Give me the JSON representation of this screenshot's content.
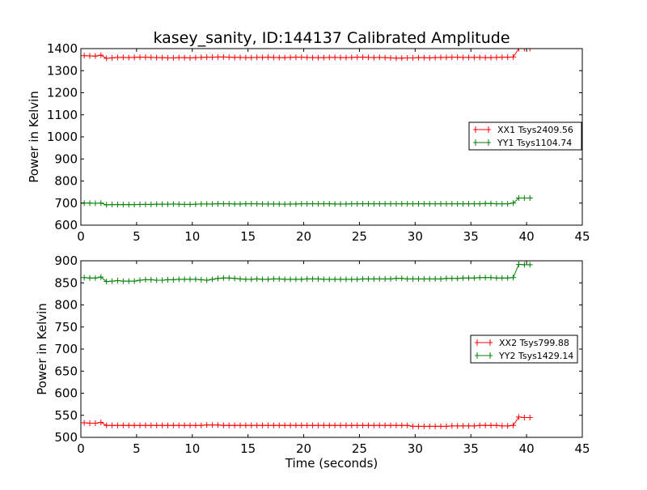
{
  "chart_data": [
    {
      "type": "line",
      "title": "kasey_sanity, ID:144137 Calibrated Amplitude",
      "xlabel": "",
      "ylabel": "Power in Kelvin",
      "xlim": [
        0,
        45
      ],
      "ylim": [
        600,
        1400
      ],
      "xticks": [
        0,
        5,
        10,
        15,
        20,
        25,
        30,
        35,
        40,
        45
      ],
      "yticks": [
        600,
        700,
        800,
        900,
        1000,
        1100,
        1200,
        1300,
        1400
      ],
      "legend_position": "center-right",
      "x_start": 0.3,
      "x_step": 0.5,
      "series": [
        {
          "name": "XX1 Tsys2409.56",
          "color": "#ff0000",
          "values": [
            1368,
            1367,
            1366,
            1370,
            1356,
            1358,
            1360,
            1360,
            1359,
            1360,
            1361,
            1361,
            1360,
            1359,
            1359,
            1358,
            1358,
            1359,
            1359,
            1358,
            1359,
            1360,
            1361,
            1361,
            1362,
            1362,
            1361,
            1360,
            1360,
            1359,
            1359,
            1360,
            1360,
            1361,
            1360,
            1359,
            1359,
            1360,
            1361,
            1361,
            1360,
            1359,
            1359,
            1359,
            1360,
            1360,
            1359,
            1359,
            1360,
            1361,
            1361,
            1360,
            1359,
            1360,
            1359,
            1358,
            1357,
            1357,
            1358,
            1358,
            1359,
            1359,
            1358,
            1359,
            1360,
            1360,
            1361,
            1361,
            1360,
            1360,
            1360,
            1360,
            1359,
            1359,
            1360,
            1361,
            1361,
            1362,
            1400,
            1400,
            1400
          ]
        },
        {
          "name": "YY1 Tsys1104.74",
          "color": "#008000",
          "values": [
            700,
            700,
            699,
            700,
            692,
            693,
            693,
            693,
            693,
            693,
            694,
            694,
            694,
            695,
            695,
            695,
            696,
            695,
            694,
            694,
            695,
            696,
            696,
            696,
            697,
            697,
            697,
            696,
            696,
            697,
            697,
            697,
            696,
            696,
            696,
            696,
            695,
            696,
            696,
            697,
            697,
            697,
            697,
            697,
            697,
            696,
            696,
            696,
            697,
            697,
            697,
            697,
            697,
            697,
            697,
            697,
            697,
            697,
            697,
            697,
            697,
            697,
            697,
            697,
            697,
            697,
            697,
            697,
            697,
            697,
            697,
            697,
            698,
            698,
            697,
            697,
            697,
            700,
            723,
            723,
            723
          ]
        }
      ]
    },
    {
      "type": "line",
      "title": "",
      "xlabel": "Time (seconds)",
      "ylabel": "Power in Kelvin",
      "xlim": [
        0,
        45
      ],
      "ylim": [
        500,
        900
      ],
      "xticks": [
        0,
        5,
        10,
        15,
        20,
        25,
        30,
        35,
        40,
        45
      ],
      "yticks": [
        500,
        550,
        600,
        650,
        700,
        750,
        800,
        850,
        900
      ],
      "legend_position": "center-right",
      "x_start": 0.3,
      "x_step": 0.5,
      "series": [
        {
          "name": "XX2 Tsys799.88",
          "color": "#ff0000",
          "values": [
            533,
            532,
            532,
            534,
            527,
            527,
            527,
            527,
            527,
            527,
            527,
            527,
            527,
            527,
            527,
            527,
            527,
            527,
            527,
            527,
            527,
            527,
            528,
            528,
            528,
            527,
            527,
            527,
            527,
            527,
            527,
            527,
            527,
            527,
            527,
            527,
            527,
            527,
            527,
            527,
            527,
            527,
            527,
            527,
            527,
            527,
            527,
            527,
            527,
            527,
            527,
            527,
            527,
            527,
            527,
            527,
            527,
            527,
            527,
            525,
            525,
            525,
            525,
            525,
            525,
            525,
            526,
            526,
            526,
            526,
            526,
            527,
            527,
            527,
            527,
            526,
            526,
            527,
            546,
            545,
            545
          ]
        },
        {
          "name": "YY2 Tsys1429.14",
          "color": "#008000",
          "values": [
            862,
            861,
            861,
            863,
            853,
            854,
            855,
            854,
            854,
            854,
            856,
            857,
            857,
            856,
            856,
            857,
            857,
            858,
            858,
            858,
            858,
            857,
            856,
            858,
            860,
            861,
            861,
            860,
            859,
            858,
            858,
            859,
            858,
            858,
            859,
            859,
            858,
            858,
            858,
            858,
            859,
            859,
            859,
            858,
            858,
            858,
            858,
            858,
            858,
            858,
            859,
            859,
            859,
            859,
            859,
            859,
            860,
            860,
            859,
            859,
            859,
            859,
            859,
            859,
            859,
            860,
            860,
            860,
            861,
            861,
            861,
            862,
            862,
            862,
            861,
            861,
            861,
            862,
            892,
            891,
            891
          ]
        }
      ]
    }
  ]
}
